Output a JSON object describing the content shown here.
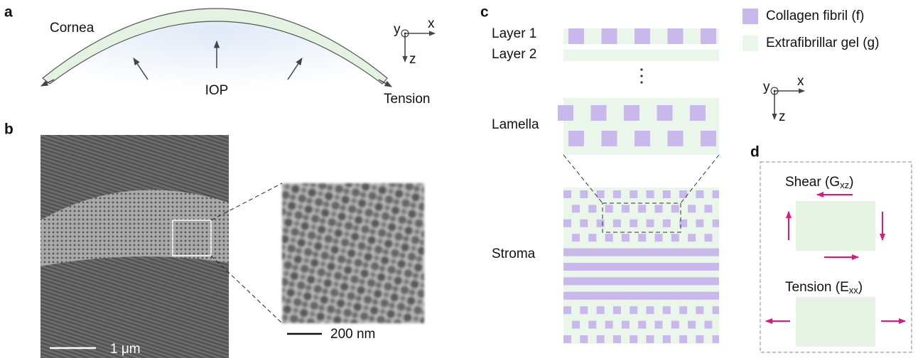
{
  "panel_a": {
    "label": "a",
    "cornea": "Cornea",
    "pressure": "IOP",
    "tension": "Tension",
    "axes": {
      "y": "y",
      "x": "x",
      "z": "z"
    }
  },
  "panel_b": {
    "label": "b",
    "scale_main": "1 μm",
    "scale_inset": "200 nm"
  },
  "panel_c": {
    "label": "c",
    "layers": [
      "Layer 1",
      "Layer 2"
    ],
    "lamella": "Lamella",
    "stroma": "Stroma",
    "legend": [
      "Collagen fibril (f)",
      "Extrafibrillar gel (g)"
    ],
    "axes": {
      "y": "y",
      "x": "x",
      "z": "z"
    }
  },
  "panel_d": {
    "label": "d",
    "shear": {
      "text": "Shear (G",
      "sub": "xz",
      "close": ")"
    },
    "tension": {
      "text": "Tension (E",
      "sub": "xx",
      "close": ")"
    }
  }
}
